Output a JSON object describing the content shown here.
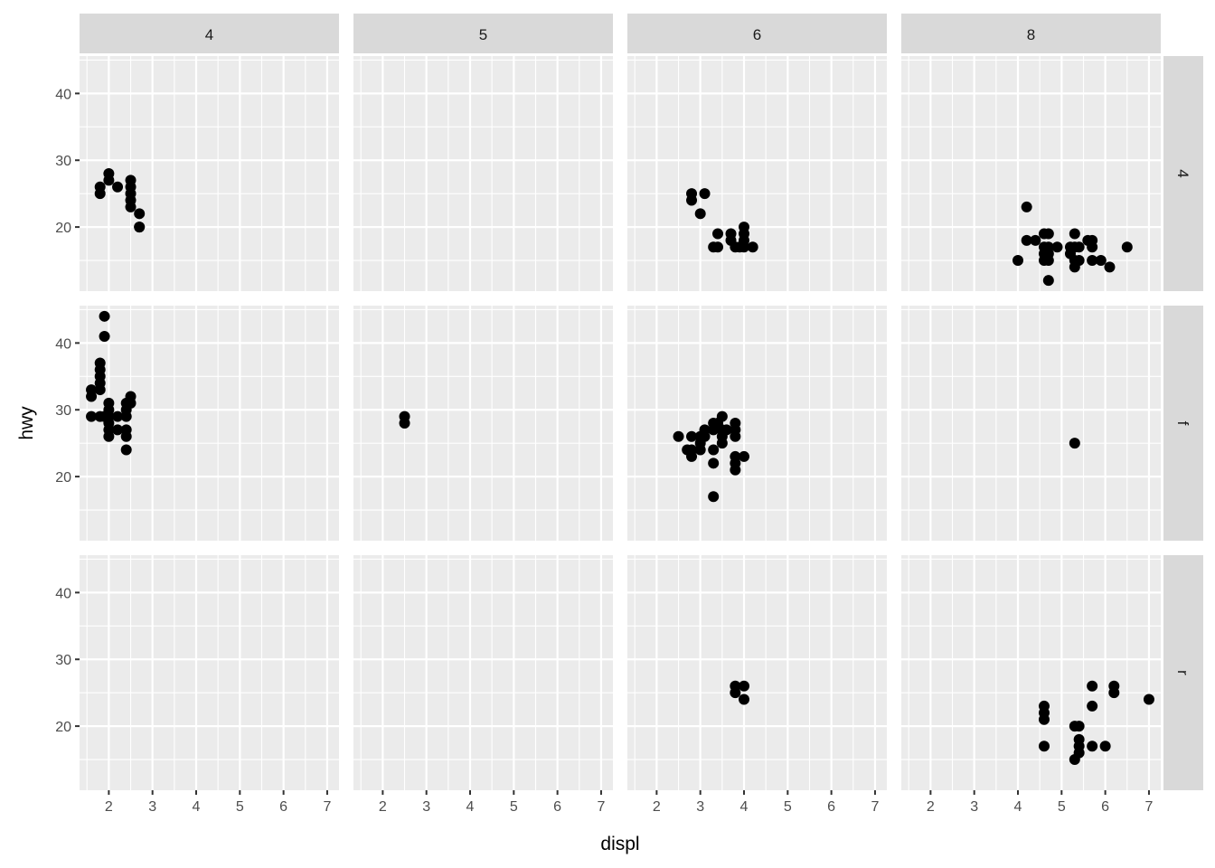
{
  "chart_data": {
    "type": "scatter",
    "xlabel": "displ",
    "ylabel": "hwy",
    "xlim": [
      1.33,
      7.27
    ],
    "ylim": [
      10.4,
      45.6
    ],
    "xticks": [
      2,
      3,
      4,
      5,
      6,
      7
    ],
    "yticks": [
      20,
      30,
      40
    ],
    "grid": true,
    "col_facets": [
      "4",
      "5",
      "6",
      "8"
    ],
    "row_facets": [
      "4",
      "f",
      "r"
    ],
    "colors": {
      "panel": "#ebebeb",
      "strip": "#d9d9d9",
      "point": "#000000",
      "grid": "#ffffff"
    },
    "panels": [
      {
        "col": "4",
        "row": "4",
        "points": [
          [
            1.8,
            25
          ],
          [
            1.8,
            26
          ],
          [
            2.0,
            28
          ],
          [
            2.0,
            27
          ],
          [
            2.2,
            26
          ],
          [
            2.5,
            27
          ],
          [
            2.5,
            26
          ],
          [
            2.5,
            25
          ],
          [
            2.5,
            24
          ],
          [
            2.5,
            23
          ],
          [
            2.7,
            22
          ],
          [
            2.7,
            20
          ],
          [
            2.7,
            20
          ]
        ]
      },
      {
        "col": "6",
        "row": "4",
        "points": [
          [
            2.8,
            25
          ],
          [
            2.8,
            24
          ],
          [
            3.1,
            25
          ],
          [
            3.0,
            22
          ],
          [
            3.3,
            17
          ],
          [
            3.4,
            17
          ],
          [
            3.4,
            19
          ],
          [
            3.7,
            19
          ],
          [
            3.7,
            18
          ],
          [
            3.8,
            17
          ],
          [
            4.0,
            20
          ],
          [
            4.0,
            19
          ],
          [
            4.0,
            18
          ],
          [
            4.0,
            17
          ],
          [
            4.2,
            17
          ],
          [
            3.9,
            17
          ]
        ]
      },
      {
        "col": "8",
        "row": "4",
        "points": [
          [
            4.0,
            15
          ],
          [
            4.2,
            23
          ],
          [
            4.2,
            18
          ],
          [
            4.4,
            18
          ],
          [
            4.6,
            19
          ],
          [
            4.7,
            19
          ],
          [
            4.6,
            17
          ],
          [
            4.7,
            17
          ],
          [
            4.6,
            16
          ],
          [
            4.7,
            16
          ],
          [
            4.6,
            15
          ],
          [
            4.7,
            15
          ],
          [
            4.7,
            12
          ],
          [
            4.9,
            17
          ],
          [
            5.2,
            17
          ],
          [
            5.2,
            16
          ],
          [
            5.3,
            19
          ],
          [
            5.3,
            17
          ],
          [
            5.3,
            15
          ],
          [
            5.3,
            14
          ],
          [
            5.4,
            17
          ],
          [
            5.4,
            15
          ],
          [
            5.6,
            18
          ],
          [
            5.7,
            18
          ],
          [
            5.7,
            17
          ],
          [
            5.7,
            15
          ],
          [
            5.9,
            15
          ],
          [
            6.1,
            14
          ],
          [
            6.5,
            17
          ]
        ]
      },
      {
        "col": "4",
        "row": "f",
        "points": [
          [
            1.6,
            33
          ],
          [
            1.6,
            32
          ],
          [
            1.6,
            29
          ],
          [
            1.8,
            29
          ],
          [
            1.8,
            37
          ],
          [
            1.8,
            36
          ],
          [
            1.8,
            35
          ],
          [
            1.8,
            34
          ],
          [
            1.8,
            33
          ],
          [
            1.9,
            44
          ],
          [
            1.9,
            41
          ],
          [
            1.9,
            29
          ],
          [
            2.0,
            31
          ],
          [
            2.0,
            30
          ],
          [
            2.0,
            29
          ],
          [
            2.0,
            28
          ],
          [
            2.0,
            27
          ],
          [
            2.0,
            26
          ],
          [
            2.2,
            29
          ],
          [
            2.2,
            27
          ],
          [
            2.4,
            31
          ],
          [
            2.4,
            30
          ],
          [
            2.4,
            29
          ],
          [
            2.4,
            27
          ],
          [
            2.4,
            24
          ],
          [
            2.5,
            32
          ],
          [
            2.5,
            31
          ],
          [
            2.4,
            26
          ]
        ]
      },
      {
        "col": "5",
        "row": "f",
        "points": [
          [
            2.5,
            29
          ],
          [
            2.5,
            28
          ]
        ]
      },
      {
        "col": "6",
        "row": "f",
        "points": [
          [
            2.5,
            26
          ],
          [
            2.7,
            24
          ],
          [
            2.8,
            24
          ],
          [
            2.8,
            23
          ],
          [
            2.8,
            26
          ],
          [
            3.0,
            26
          ],
          [
            3.0,
            25
          ],
          [
            3.0,
            24
          ],
          [
            3.1,
            27
          ],
          [
            3.1,
            26
          ],
          [
            3.3,
            28
          ],
          [
            3.3,
            27
          ],
          [
            3.3,
            24
          ],
          [
            3.3,
            22
          ],
          [
            3.3,
            17
          ],
          [
            3.4,
            28
          ],
          [
            3.5,
            29
          ],
          [
            3.5,
            27
          ],
          [
            3.5,
            26
          ],
          [
            3.5,
            25
          ],
          [
            3.6,
            27
          ],
          [
            3.8,
            28
          ],
          [
            3.8,
            27
          ],
          [
            3.8,
            26
          ],
          [
            3.8,
            23
          ],
          [
            3.8,
            22
          ],
          [
            3.8,
            21
          ],
          [
            4.0,
            23
          ]
        ]
      },
      {
        "col": "8",
        "row": "f",
        "points": [
          [
            5.3,
            25
          ]
        ]
      },
      {
        "col": "6",
        "row": "r",
        "points": [
          [
            3.8,
            26
          ],
          [
            3.8,
            25
          ],
          [
            4.0,
            26
          ],
          [
            4.0,
            24
          ]
        ]
      },
      {
        "col": "8",
        "row": "r",
        "points": [
          [
            4.6,
            23
          ],
          [
            4.6,
            22
          ],
          [
            4.6,
            21
          ],
          [
            4.6,
            17
          ],
          [
            5.3,
            20
          ],
          [
            5.3,
            15
          ],
          [
            5.4,
            20
          ],
          [
            5.4,
            18
          ],
          [
            5.4,
            17
          ],
          [
            5.4,
            16
          ],
          [
            5.7,
            26
          ],
          [
            5.7,
            23
          ],
          [
            5.7,
            17
          ],
          [
            6.0,
            17
          ],
          [
            6.2,
            26
          ],
          [
            6.2,
            25
          ],
          [
            7.0,
            24
          ]
        ]
      }
    ]
  }
}
